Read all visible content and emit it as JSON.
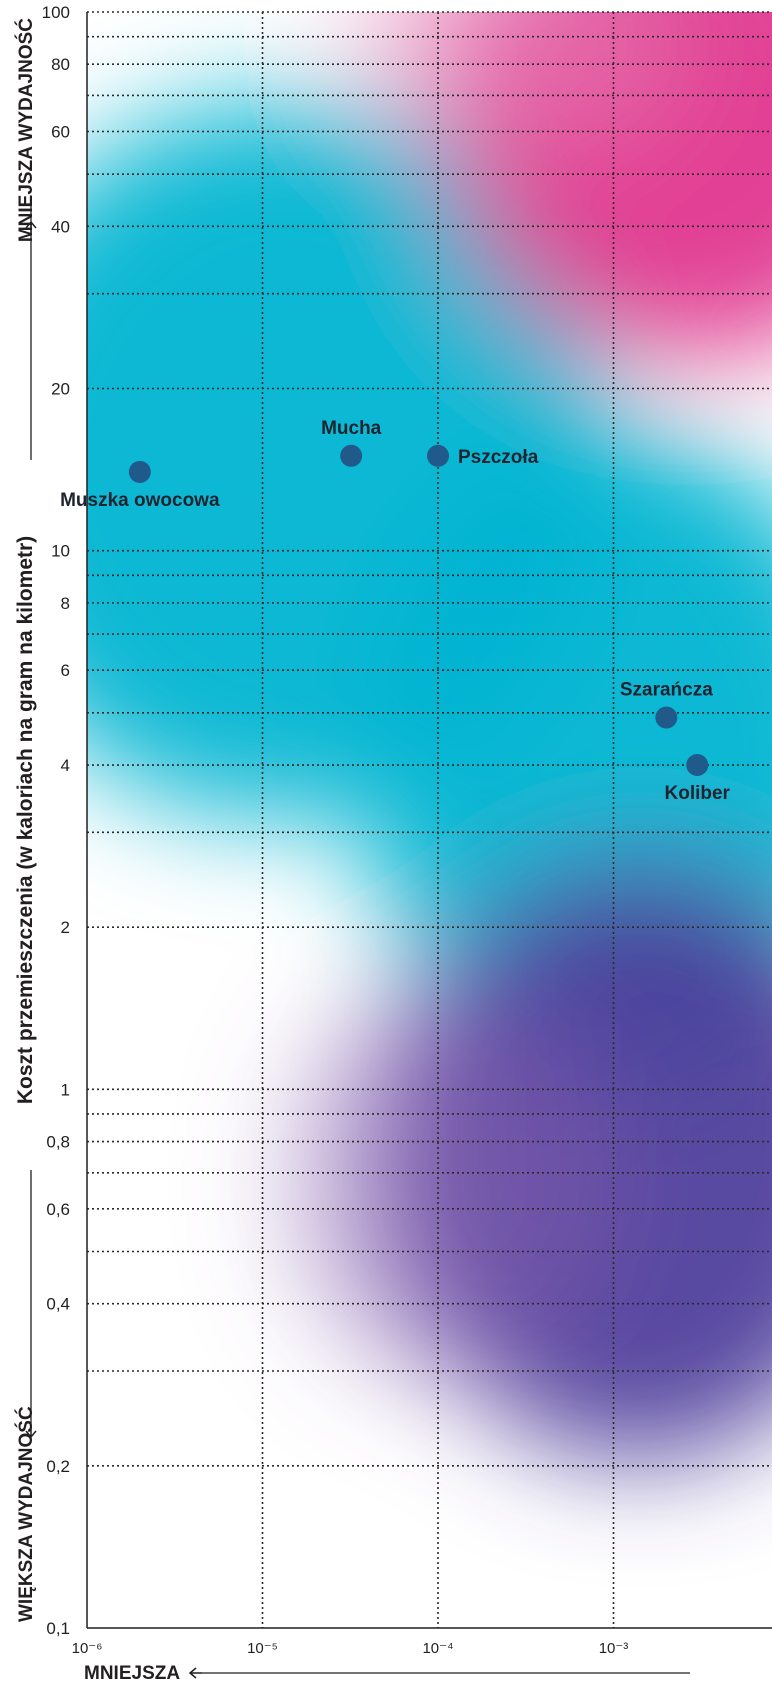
{
  "chart_data": {
    "type": "scatter",
    "xscale": "log",
    "yscale": "log",
    "xlim": [
      1e-06,
      0.008
    ],
    "ylim": [
      0.1,
      100
    ],
    "x_ticks": [
      {
        "value": 1e-06,
        "label": "10⁻⁶"
      },
      {
        "value": 1e-05,
        "label": "10⁻⁵"
      },
      {
        "value": 0.0001,
        "label": "10⁻⁴"
      },
      {
        "value": 0.001,
        "label": "10⁻³"
      }
    ],
    "y_ticks": [
      {
        "value": 100,
        "label": "100"
      },
      {
        "value": 80,
        "label": "80"
      },
      {
        "value": 60,
        "label": "60"
      },
      {
        "value": 40,
        "label": "40"
      },
      {
        "value": 20,
        "label": "20"
      },
      {
        "value": 10,
        "label": "10"
      },
      {
        "value": 8,
        "label": "8"
      },
      {
        "value": 6,
        "label": "6"
      },
      {
        "value": 4,
        "label": "4"
      },
      {
        "value": 2,
        "label": "2"
      },
      {
        "value": 1,
        "label": "1"
      },
      {
        "value": 0.8,
        "label": "0,8"
      },
      {
        "value": 0.6,
        "label": "0,6"
      },
      {
        "value": 0.4,
        "label": "0,4"
      },
      {
        "value": 0.2,
        "label": "0,2"
      },
      {
        "value": 0.1,
        "label": "0,1"
      }
    ],
    "y_minor_gridlines": [
      90,
      70,
      50,
      30,
      9,
      7,
      5,
      3,
      0.9,
      0.7,
      0.5,
      0.3
    ],
    "points": [
      {
        "name": "Muszka owocowa",
        "x": 2e-06,
        "y": 14,
        "label_pos": "below"
      },
      {
        "name": "Mucha",
        "x": 3.2e-05,
        "y": 15,
        "label_pos": "above"
      },
      {
        "name": "Pszczoła",
        "x": 0.0001,
        "y": 15,
        "label_pos": "right"
      },
      {
        "name": "Szarańcza",
        "x": 0.002,
        "y": 4.9,
        "label_pos": "above"
      },
      {
        "name": "Koliber",
        "x": 0.003,
        "y": 4.0,
        "label_pos": "below"
      }
    ],
    "ylabel": "Koszt przemieszczenia (w kaloriach na gram na kilometr)",
    "ylabel_top": "MNIEJSZA WYDAJNOŚĆ",
    "ylabel_bottom": "WIĘKSZA WYDAJNOŚĆ",
    "xlabel": "MNIEJSZA",
    "grid": true,
    "colors": {
      "point": "#1f5a8a",
      "cyan": "#00b4d2",
      "magenta": "#e0378e",
      "purple": "#4f3f9c"
    }
  }
}
